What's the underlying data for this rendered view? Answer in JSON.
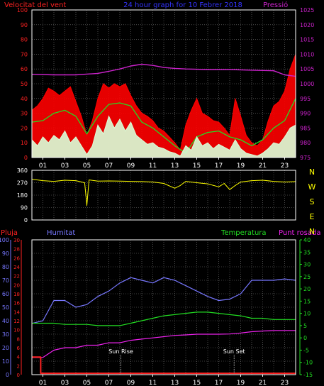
{
  "colors": {
    "background": "#000000",
    "plot_border": "#ffffff",
    "grid": "#7a7a7a",
    "wind_gust": "#ff0000",
    "wind_avg": "#22dd22",
    "wind_min": "#d8ffd8",
    "pressure": "#cc22cc",
    "direction": "#ffff00",
    "rain": "#ff2222",
    "humidity": "#7777ff",
    "temperature": "#22dd22",
    "dewpoint": "#ee22ee",
    "sun_marker": "#ffffff"
  },
  "header": {
    "title": "24 hour graph for 10 Febrer 2018",
    "wind_label": "Velocitat del vent",
    "pressure_label": "Pressió"
  },
  "time_axis": {
    "ticks": [
      "01",
      "03",
      "05",
      "07",
      "09",
      "11",
      "13",
      "15",
      "17",
      "19",
      "21",
      "23"
    ]
  },
  "chart_data": [
    {
      "type": "line",
      "title": "24 hour graph for 10 Febrer 2018",
      "xlabel": "",
      "xlim": [
        0,
        24
      ],
      "left_axis": {
        "label": "Velocitat del vent",
        "ylim": [
          0,
          100
        ],
        "ticks": [
          0,
          10,
          20,
          30,
          40,
          50,
          60,
          70,
          80,
          90,
          100
        ]
      },
      "right_axis": {
        "label": "Pressió",
        "ylim": [
          975,
          1025
        ],
        "ticks": [
          975,
          980,
          985,
          990,
          995,
          1000,
          1005,
          1010,
          1015,
          1020,
          1025
        ]
      },
      "grid": true,
      "series": [
        {
          "name": "",
          "axis": "left",
          "role": "wind_gust",
          "color": "#ff0000",
          "x": [
            0,
            0.5,
            1,
            1.5,
            2,
            2.5,
            3,
            3.5,
            4,
            4.5,
            5,
            5.5,
            6,
            6.5,
            7,
            7.5,
            8,
            8.5,
            9,
            9.5,
            10,
            10.5,
            11,
            11.5,
            12,
            12.5,
            13,
            13.5,
            14,
            14.5,
            15,
            15.5,
            16,
            16.5,
            17,
            17.5,
            18,
            18.5,
            19,
            19.5,
            20,
            20.5,
            21,
            21.5,
            22,
            22.5,
            23,
            23.5,
            24
          ],
          "y": [
            32,
            35,
            40,
            47,
            45,
            42,
            45,
            48,
            38,
            28,
            15,
            25,
            40,
            50,
            47,
            50,
            48,
            50,
            42,
            35,
            30,
            28,
            25,
            20,
            18,
            14,
            10,
            5,
            22,
            32,
            40,
            30,
            28,
            25,
            24,
            20,
            15,
            40,
            28,
            15,
            10,
            8,
            12,
            25,
            35,
            38,
            45,
            60,
            70
          ]
        },
        {
          "name": "",
          "axis": "left",
          "role": "wind_avg",
          "color": "#22dd22",
          "x": [
            0,
            1,
            2,
            3,
            4,
            5,
            6,
            7,
            8,
            9,
            10,
            11,
            12,
            13,
            14,
            15,
            16,
            17,
            18,
            19,
            20,
            21,
            22,
            23,
            24
          ],
          "y": [
            24,
            25,
            30,
            32,
            28,
            16,
            28,
            36,
            37,
            35,
            24,
            20,
            14,
            8,
            3,
            14,
            17,
            18,
            14,
            12,
            8,
            12,
            20,
            25,
            40
          ]
        },
        {
          "name": "",
          "axis": "left",
          "role": "wind_min",
          "color": "#d8ffd8",
          "x": [
            0,
            0.5,
            1,
            1.5,
            2,
            2.5,
            3,
            3.5,
            4,
            4.5,
            5,
            5.5,
            6,
            6.5,
            7,
            7.5,
            8,
            8.5,
            9,
            9.5,
            10,
            10.5,
            11,
            11.5,
            12,
            12.5,
            13,
            13.5,
            14,
            14.5,
            15,
            15.5,
            16,
            16.5,
            17,
            17.5,
            18,
            18.5,
            19,
            19.5,
            20,
            20.5,
            21,
            21.5,
            22,
            22.5,
            23,
            23.5,
            24
          ],
          "y": [
            12,
            8,
            14,
            10,
            15,
            12,
            18,
            10,
            14,
            8,
            2,
            8,
            22,
            16,
            28,
            20,
            26,
            18,
            24,
            15,
            12,
            9,
            10,
            7,
            6,
            4,
            3,
            1,
            8,
            5,
            14,
            8,
            10,
            6,
            9,
            7,
            5,
            12,
            6,
            3,
            2,
            1,
            3,
            6,
            10,
            9,
            14,
            20,
            22
          ]
        },
        {
          "name": "",
          "axis": "right",
          "role": "pressure",
          "color": "#cc22cc",
          "x": [
            0,
            2,
            4,
            6,
            7,
            8,
            9,
            10,
            11,
            12,
            13,
            14,
            16,
            18,
            20,
            22,
            23,
            24
          ],
          "y": [
            1003.2,
            1003.0,
            1003.0,
            1003.5,
            1004.2,
            1005.0,
            1006.0,
            1006.6,
            1006.2,
            1005.5,
            1005.2,
            1005.0,
            1004.8,
            1004.8,
            1004.6,
            1004.4,
            1003.0,
            1002.5
          ]
        }
      ]
    },
    {
      "type": "line",
      "title": "",
      "xlim": [
        0,
        24
      ],
      "left_axis": {
        "label": "",
        "ylim": [
          0,
          360
        ],
        "ticks": [
          0,
          90,
          180,
          270,
          360
        ]
      },
      "right_axis": {
        "label": "",
        "tick_labels": [
          "N",
          "W",
          "S",
          "E",
          "N"
        ]
      },
      "grid": true,
      "series": [
        {
          "name": "",
          "role": "direction",
          "color": "#ffff00",
          "x": [
            0,
            1,
            2,
            3,
            4,
            4.8,
            5,
            5.2,
            6,
            7,
            8,
            9,
            10,
            11,
            12,
            13,
            13.5,
            14,
            15,
            16,
            17,
            17.5,
            18,
            18.5,
            19,
            20,
            21,
            22,
            23,
            24
          ],
          "y": [
            295,
            285,
            280,
            288,
            285,
            270,
            105,
            290,
            282,
            283,
            282,
            280,
            278,
            275,
            265,
            230,
            250,
            280,
            270,
            262,
            240,
            265,
            220,
            250,
            275,
            285,
            288,
            280,
            275,
            278
          ]
        }
      ]
    },
    {
      "type": "line",
      "title": "",
      "xlim": [
        0,
        24
      ],
      "left_axis_outer": {
        "label": "Pluja",
        "ylim": [
          0,
          100
        ],
        "ticks": [
          0,
          10,
          20,
          30,
          40,
          50,
          60,
          70,
          80,
          90,
          100
        ]
      },
      "left_axis_inner": {
        "label": "Humitat",
        "ylim": [
          0,
          30
        ],
        "ticks": [
          0,
          2,
          4,
          6,
          8,
          10,
          12,
          14,
          16,
          18,
          20,
          22,
          24,
          26,
          28,
          30
        ]
      },
      "right_axis": {
        "label": "Temperatura",
        "ylim": [
          -15,
          40
        ],
        "ticks": [
          -15,
          -10,
          -5,
          0,
          5,
          10,
          15,
          20,
          25,
          30,
          35,
          40
        ]
      },
      "right_label_2": "Punt rosada",
      "grid": true,
      "annotations": [
        {
          "text": "Sun Rise",
          "x": 8.1
        },
        {
          "text": "Sun Set",
          "x": 18.4
        }
      ],
      "series": [
        {
          "name": "",
          "axis": "left_outer",
          "role": "rain",
          "color": "#ff2222",
          "x": [
            0,
            0.8,
            0.8,
            24
          ],
          "y": [
            13,
            13,
            1,
            1
          ]
        },
        {
          "name": "",
          "axis": "left_outer",
          "role": "humidity",
          "color": "#7777ff",
          "x": [
            0,
            1,
            2,
            3,
            4,
            5,
            6,
            7,
            8,
            9,
            10,
            11,
            12,
            13,
            14,
            15,
            16,
            17,
            18,
            19,
            20,
            21,
            22,
            23,
            24
          ],
          "y": [
            38,
            40,
            55,
            55,
            50,
            52,
            58,
            62,
            68,
            72,
            70,
            68,
            72,
            70,
            66,
            62,
            58,
            55,
            56,
            60,
            70,
            70,
            70,
            71,
            70
          ]
        },
        {
          "name": "",
          "axis": "right",
          "role": "temperature",
          "color": "#22dd22",
          "x": [
            0,
            1,
            2,
            3,
            4,
            5,
            6,
            7,
            8,
            9,
            10,
            11,
            12,
            13,
            14,
            15,
            16,
            17,
            18,
            19,
            20,
            21,
            22,
            23,
            24
          ],
          "y": [
            6,
            6,
            6,
            5.5,
            5.5,
            5.5,
            5,
            5,
            5,
            6,
            7,
            8,
            9,
            9.5,
            10,
            10.5,
            10.5,
            10,
            9.5,
            9,
            8,
            8,
            7.5,
            7.5,
            7.5
          ]
        },
        {
          "name": "",
          "axis": "right",
          "role": "dewpoint",
          "color": "#ee22ee",
          "x": [
            0,
            1,
            2,
            3,
            4,
            5,
            6,
            7,
            8,
            9,
            10,
            11,
            12,
            13,
            14,
            15,
            16,
            17,
            18,
            19,
            20,
            21,
            22,
            23,
            24
          ],
          "y": [
            -8,
            -8,
            -5,
            -4,
            -4,
            -3,
            -3,
            -2,
            -2,
            -1,
            -0.5,
            0,
            0.5,
            1,
            1.2,
            1.5,
            1.5,
            1.5,
            1.6,
            2,
            2.5,
            2.8,
            3,
            3,
            3
          ]
        }
      ]
    }
  ]
}
